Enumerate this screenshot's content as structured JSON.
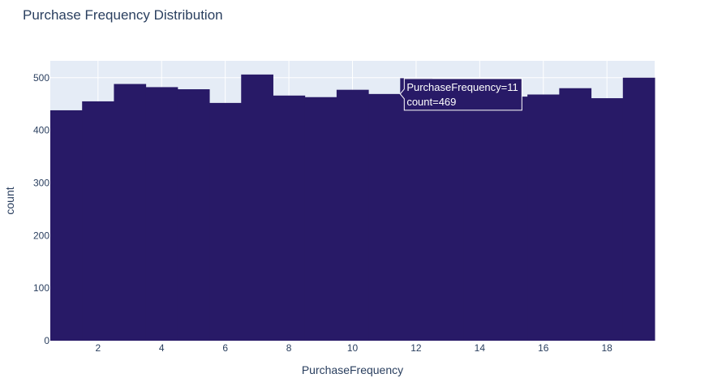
{
  "chart_data": {
    "type": "bar",
    "title": "Purchase Frequency Distribution",
    "xlabel": "PurchaseFrequency",
    "ylabel": "count",
    "categories": [
      1,
      2,
      3,
      4,
      5,
      6,
      7,
      8,
      9,
      10,
      11,
      12,
      13,
      14,
      15,
      16,
      17,
      18,
      19
    ],
    "values": [
      438,
      455,
      488,
      482,
      478,
      452,
      506,
      466,
      463,
      477,
      469,
      499,
      462,
      463,
      464,
      468,
      480,
      461,
      500
    ],
    "xlim": [
      0.5,
      19.5
    ],
    "ylim": [
      0,
      532
    ],
    "xticks": [
      2,
      4,
      6,
      8,
      10,
      12,
      14,
      16,
      18
    ],
    "yticks": [
      0,
      100,
      200,
      300,
      400,
      500
    ],
    "bar_color": "#281a67",
    "plot_background": "#e5ecf6",
    "grid": true,
    "hover": {
      "category": 11,
      "line1": "PurchaseFrequency=11",
      "line2": "count=469"
    }
  }
}
